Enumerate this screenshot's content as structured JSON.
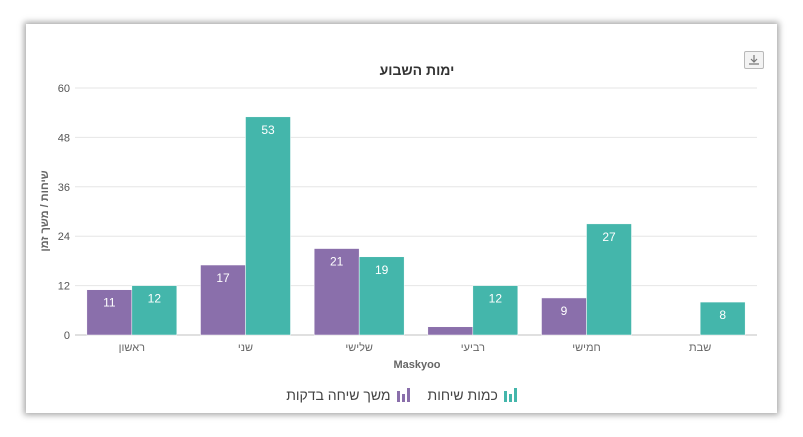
{
  "colors": {
    "purple": "#8a6fab",
    "teal": "#44b6ab"
  },
  "export_icon": "download-icon",
  "chart_data": {
    "type": "bar",
    "title": "ימות השבוע",
    "xlabel": "Maskyoo",
    "ylabel": "שיחות / משך זמן",
    "categories": [
      "ראשון",
      "שני",
      "שלישי",
      "רביעי",
      "חמישי",
      "שבת"
    ],
    "ylim": [
      0,
      60
    ],
    "yticks": [
      0,
      12,
      24,
      36,
      48,
      60
    ],
    "grid": true,
    "legend_position": "bottom",
    "series": [
      {
        "name": "משך שיחה בדקות",
        "color": "#8a6fab",
        "values": [
          11,
          17,
          21,
          2,
          9,
          null
        ]
      },
      {
        "name": "כמות שיחות",
        "color": "#44b6ab",
        "values": [
          12,
          53,
          19,
          12,
          27,
          8
        ]
      }
    ]
  }
}
